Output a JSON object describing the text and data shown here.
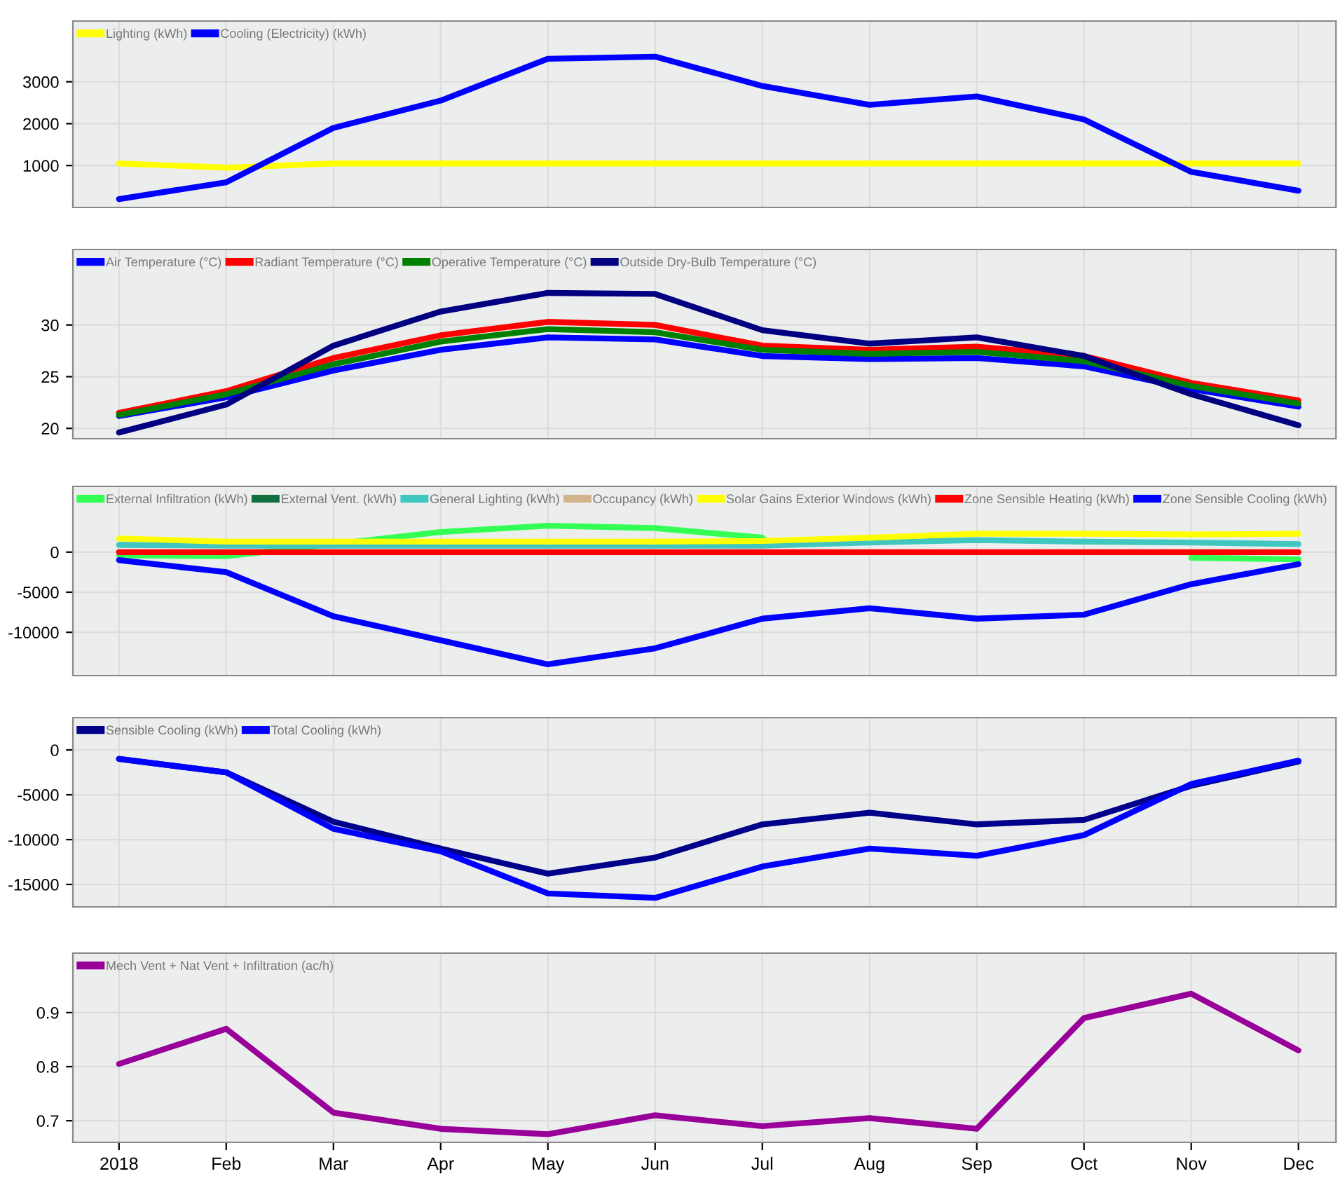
{
  "chart_data": [
    {
      "type": "line",
      "categories": [
        null,
        null,
        null,
        null,
        null,
        null,
        null,
        null,
        null,
        null,
        null,
        null
      ],
      "ylim": [
        0,
        4450
      ],
      "yticks": [
        1000,
        2000,
        3000
      ],
      "grid": true,
      "legend": "top left",
      "tick_labels": "y",
      "marker": "none",
      "line_style": "solid",
      "series": [
        {
          "name": "Lighting (kWh)",
          "color": "#ffff00",
          "values": [
            1050,
            950,
            1050,
            1050,
            1050,
            1050,
            1050,
            1050,
            1050,
            1050,
            1050,
            1050
          ]
        },
        {
          "name": "Cooling (Electricity) (kWh)",
          "color": "#0000ff",
          "values": [
            200,
            600,
            1900,
            2550,
            3550,
            3600,
            2900,
            2450,
            2650,
            2100,
            850,
            400
          ]
        }
      ]
    },
    {
      "type": "line",
      "categories": [
        null,
        null,
        null,
        null,
        null,
        null,
        null,
        null,
        null,
        null,
        null,
        null
      ],
      "ylim": [
        19,
        37.3
      ],
      "yticks": [
        20,
        25,
        30
      ],
      "grid": true,
      "legend": "top left",
      "tick_labels": "y",
      "marker": "none",
      "line_style": "solid",
      "series": [
        {
          "name": "Air Temperature (°C)",
          "color": "#0000ff",
          "values": [
            21.2,
            23.0,
            25.6,
            27.6,
            28.8,
            28.6,
            27.0,
            26.7,
            26.8,
            26.0,
            23.8,
            22.1
          ]
        },
        {
          "name": "Radiant Temperature (°C)",
          "color": "#ff0000",
          "values": [
            21.5,
            23.6,
            26.8,
            29.0,
            30.3,
            30.0,
            28.0,
            27.6,
            27.9,
            27.0,
            24.4,
            22.7
          ]
        },
        {
          "name": "Operative Temperature (°C)",
          "color": "#008000",
          "values": [
            21.3,
            23.3,
            26.2,
            28.4,
            29.6,
            29.3,
            27.6,
            27.2,
            27.4,
            26.5,
            24.1,
            22.4
          ]
        },
        {
          "name": "Outside Dry-Bulb Temperature (°C)",
          "color": "#000080",
          "values": [
            19.6,
            22.3,
            28.0,
            31.3,
            33.1,
            33.0,
            29.5,
            28.2,
            28.8,
            27.0,
            23.3,
            20.3
          ]
        }
      ]
    },
    {
      "type": "line",
      "categories": [
        null,
        null,
        null,
        null,
        null,
        null,
        null,
        null,
        null,
        null,
        null,
        null
      ],
      "ylim": [
        -15400,
        8200
      ],
      "yticks": [
        {
          "value": -10000,
          "label": "-10000"
        },
        {
          "value": -5000,
          "label": "-5000"
        },
        0
      ],
      "grid": true,
      "legend": "top left",
      "tick_labels": "y",
      "marker": "none",
      "line_style": "solid",
      "series": [
        {
          "name": "External Infiltration (kWh)",
          "color": "#33ff55",
          "values": [
            -400,
            -500,
            1000,
            2500,
            3300,
            3000,
            1800,
            null,
            null,
            null,
            -700,
            -900
          ]
        },
        {
          "name": "External Vent. (kWh)",
          "color": "#107040",
          "values": [
            null,
            null,
            null,
            null,
            null,
            null,
            null,
            null,
            null,
            null,
            null,
            null
          ]
        },
        {
          "name": "General Lighting (kWh)",
          "color": "#40c8c0",
          "values": [
            900,
            800,
            800,
            800,
            800,
            800,
            800,
            1200,
            1500,
            1300,
            1200,
            1000
          ]
        },
        {
          "name": "Occupancy (kWh)",
          "color": "#d2b48c",
          "values": [
            null,
            null,
            null,
            null,
            null,
            null,
            null,
            null,
            null,
            null,
            null,
            null
          ]
        },
        {
          "name": "Solar Gains Exterior Windows (kWh)",
          "color": "#ffff00",
          "values": [
            1700,
            1300,
            1300,
            1300,
            1300,
            1300,
            1400,
            1800,
            2300,
            2300,
            2200,
            2300
          ]
        },
        {
          "name": "Zone Sensible Heating (kWh)",
          "color": "#ff0000",
          "values": [
            0,
            0,
            0,
            0,
            0,
            0,
            0,
            0,
            0,
            0,
            0,
            0
          ]
        },
        {
          "name": "Zone Sensible Cooling (kWh)",
          "color": "#0000ff",
          "values": [
            -1000,
            -2500,
            -8000,
            -11000,
            -14000,
            -12000,
            -8300,
            -7000,
            -8300,
            -7800,
            -4000,
            -1500
          ]
        }
      ]
    },
    {
      "type": "line",
      "categories": [
        null,
        null,
        null,
        null,
        null,
        null,
        null,
        null,
        null,
        null,
        null,
        null
      ],
      "ylim": [
        -17500,
        3600
      ],
      "yticks": [
        {
          "value": -15000,
          "label": "-15000"
        },
        {
          "value": -10000,
          "label": "-10000"
        },
        {
          "value": -5000,
          "label": "-5000"
        },
        0
      ],
      "grid": true,
      "legend": "top left",
      "tick_labels": "y",
      "marker": "none",
      "line_style": "solid",
      "series": [
        {
          "name": "Sensible Cooling (kWh)",
          "color": "#00008b",
          "values": [
            -1000,
            -2500,
            -8000,
            -11000,
            -13800,
            -12000,
            -8300,
            -7000,
            -8300,
            -7800,
            -4000,
            -1300
          ]
        },
        {
          "name": "Total Cooling (kWh)",
          "color": "#0000ff",
          "values": [
            -1000,
            -2500,
            -8800,
            -11300,
            -16000,
            -16500,
            -13000,
            -11000,
            -11800,
            -9500,
            -3800,
            -1200
          ]
        }
      ]
    },
    {
      "type": "line",
      "categories": [
        "2018",
        "Feb",
        "Mar",
        "Apr",
        "May",
        "Jun",
        "Jul",
        "Aug",
        "Sep",
        "Oct",
        "Nov",
        "Dec"
      ],
      "ylim": [
        0.66,
        1.01
      ],
      "yticks": [
        0.7,
        0.8,
        0.9
      ],
      "grid": true,
      "legend": "top left",
      "marker": "none",
      "line_style": "solid",
      "series": [
        {
          "name": "Mech Vent + Nat Vent + Infiltration (ac/h)",
          "color": "#990099",
          "values": [
            0.805,
            0.87,
            0.715,
            0.685,
            0.675,
            0.71,
            0.69,
            0.705,
            0.685,
            0.89,
            0.935,
            0.83
          ]
        }
      ]
    }
  ]
}
